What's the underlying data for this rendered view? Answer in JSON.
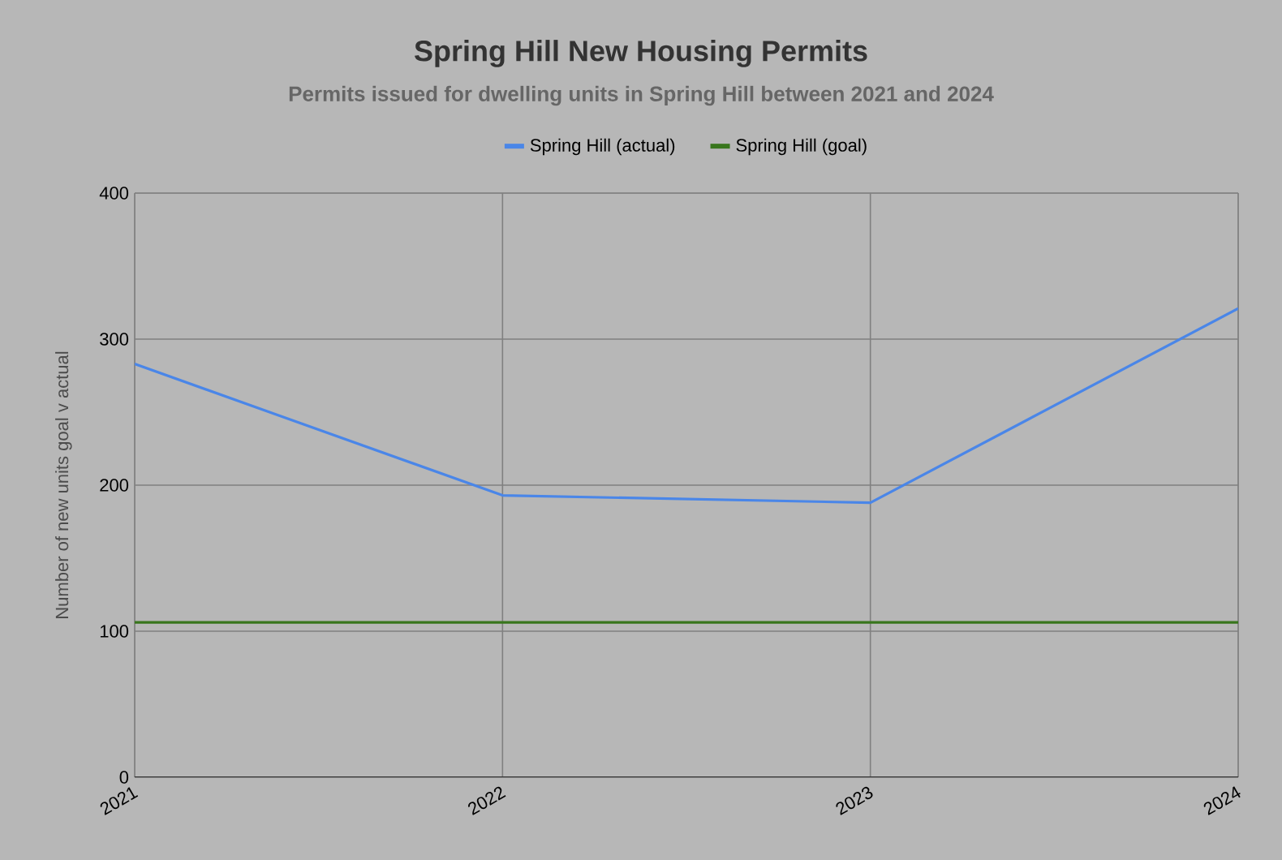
{
  "chart_data": {
    "type": "line",
    "title": "Spring Hill New Housing Permits",
    "subtitle": "Permits issued for dwelling units in Spring Hill between 2021 and 2024",
    "ylabel": "Number of new units goal v actual",
    "categories": [
      "2021",
      "2022",
      "2023",
      "2024"
    ],
    "series": [
      {
        "name": "Spring Hill (actual)",
        "color": "#4a86e8",
        "values": [
          283,
          193,
          188,
          321
        ]
      },
      {
        "name": "Spring Hill (goal)",
        "color": "#38761d",
        "values": [
          106,
          106,
          106,
          106
        ]
      }
    ],
    "ylim": [
      0,
      400
    ],
    "yticks": [
      0,
      100,
      200,
      300,
      400
    ],
    "grid": true,
    "legend": "top",
    "marker": "none",
    "line_style": "solid"
  }
}
